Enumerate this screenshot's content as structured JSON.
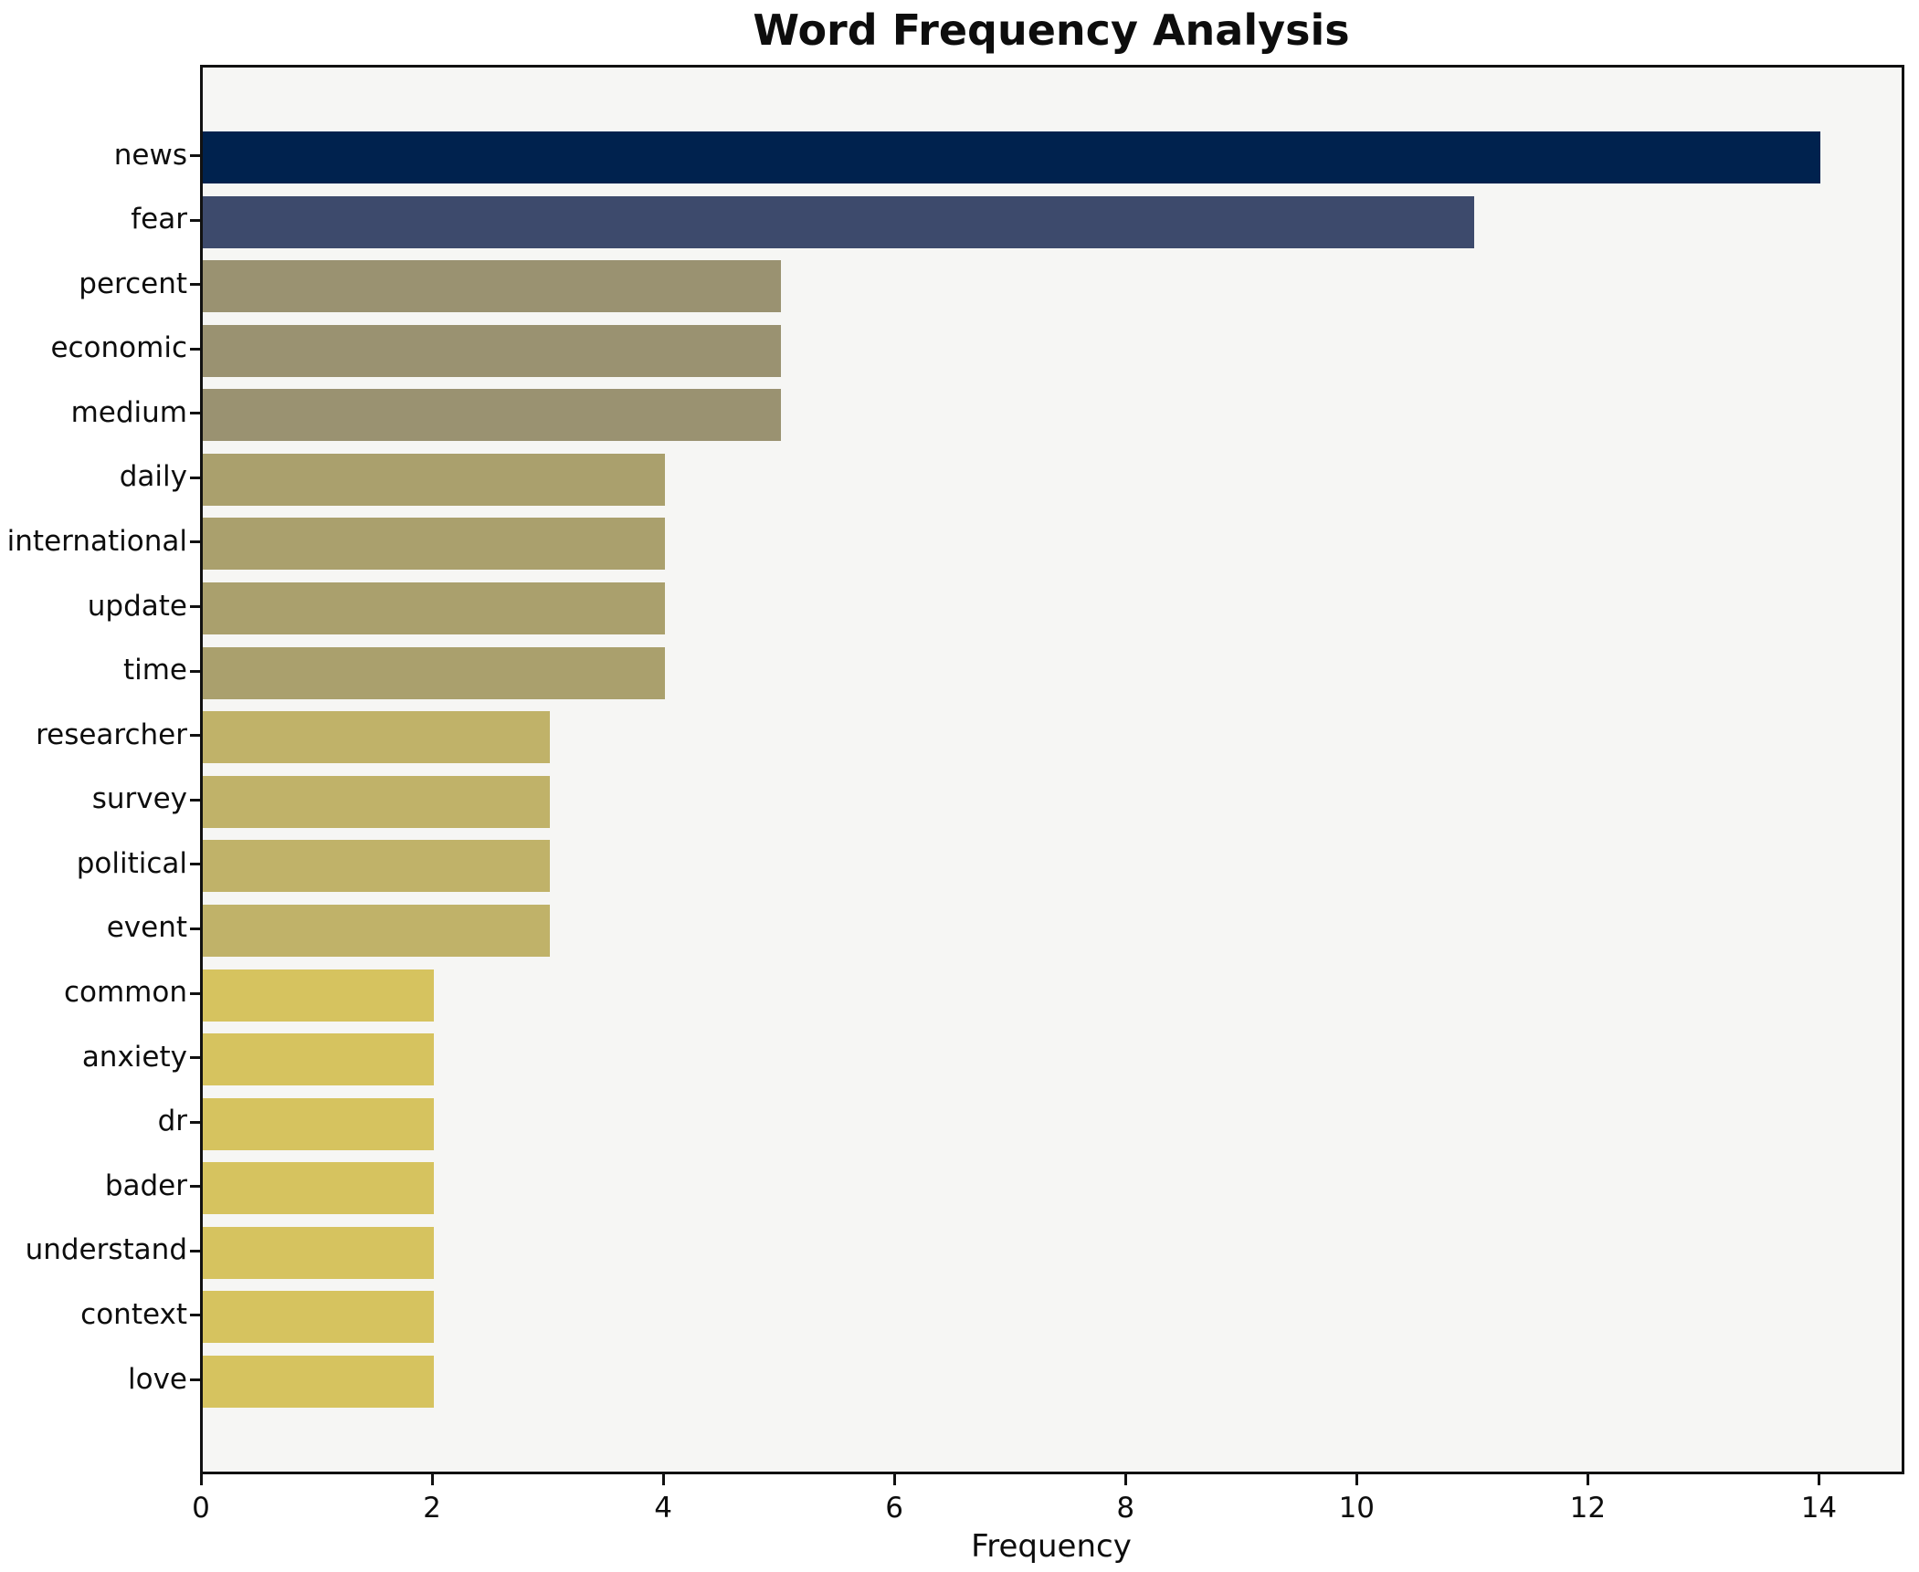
{
  "chart_data": {
    "type": "bar",
    "orientation": "horizontal",
    "title": "Word Frequency Analysis",
    "xlabel": "Frequency",
    "ylabel": "",
    "categories": [
      "news",
      "fear",
      "percent",
      "economic",
      "medium",
      "daily",
      "international",
      "update",
      "time",
      "researcher",
      "survey",
      "political",
      "event",
      "common",
      "anxiety",
      "dr",
      "bader",
      "understand",
      "context",
      "love"
    ],
    "values": [
      14,
      11,
      5,
      5,
      5,
      4,
      4,
      4,
      4,
      3,
      3,
      3,
      3,
      2,
      2,
      2,
      2,
      2,
      2,
      2
    ],
    "bar_colors": [
      "#00224e",
      "#3d4a6c",
      "#9a9271",
      "#9a9271",
      "#9a9271",
      "#aaa06d",
      "#aaa06d",
      "#aaa06d",
      "#aaa06d",
      "#c0b269",
      "#c0b269",
      "#c0b269",
      "#c0b269",
      "#d6c35f",
      "#d6c35f",
      "#d6c35f",
      "#d6c35f",
      "#d6c35f",
      "#d6c35f",
      "#d6c35f"
    ],
    "x_ticks": [
      0,
      2,
      4,
      6,
      8,
      10,
      12,
      14
    ],
    "xlim": [
      0,
      14.7
    ],
    "grid": false,
    "legend": null,
    "plot_bg_color": "#f6f6f4",
    "spine_color": "#111111"
  }
}
